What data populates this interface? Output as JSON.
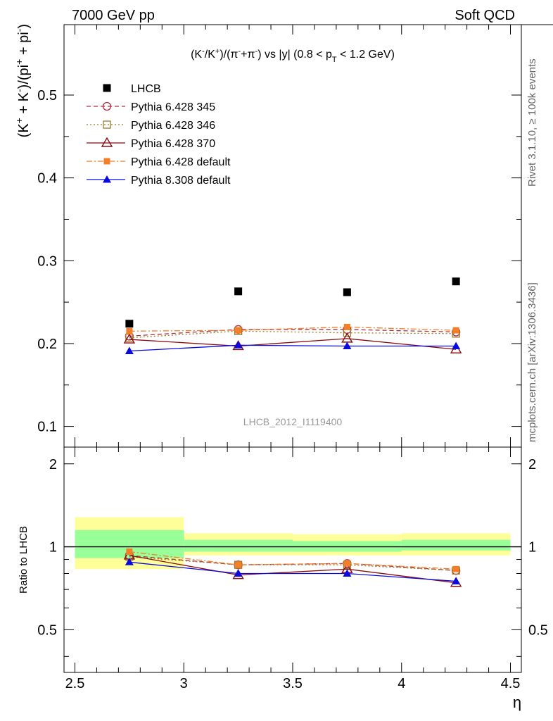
{
  "header": {
    "left": "7000 GeV pp",
    "right": "Soft QCD"
  },
  "side_labels": {
    "rivet": "Rivet 3.1.10, ≥ 100k events",
    "mcplots": "mcplots.cern.ch [arXiv:1306.3436]"
  },
  "watermark": "LHCB_2012_I1119400",
  "chart_data": [
    {
      "type": "scatter",
      "title": {
        "a": "(K",
        "sup1": "-",
        "b": "/K",
        "sup2": "+",
        "c": ")/(π",
        "sup3": "-",
        "d": "+π",
        "sup4": "-",
        "e": ") vs |y| (0.8 < p",
        "sub": "T",
        "f": " < 1.2 GeV)"
      },
      "ylabel": {
        "a": "(K",
        "sup1": "+",
        "b": " + K",
        "sup2": "-",
        "c": ")/(pi",
        "sup3": "+",
        "d": " + pi",
        "sup4": "-",
        "e": ")"
      },
      "ylim": [
        0.075,
        0.585
      ],
      "xlim": [
        2.45,
        4.55
      ],
      "yticks": [
        {
          "v": 0.1,
          "label": "0.1"
        },
        {
          "v": 0.2,
          "label": "0.2"
        },
        {
          "v": 0.3,
          "label": "0.3"
        },
        {
          "v": 0.4,
          "label": "0.4"
        },
        {
          "v": 0.5,
          "label": "0.5"
        }
      ],
      "legend": "top-left",
      "series": [
        {
          "name": "LHCB",
          "color": "#000000",
          "marker": "square-filled",
          "line": "none",
          "points": [
            {
              "x": 2.75,
              "y": 0.224
            },
            {
              "x": 3.25,
              "y": 0.263
            },
            {
              "x": 3.75,
              "y": 0.262
            },
            {
              "x": 4.25,
              "y": 0.275
            }
          ]
        },
        {
          "name": "Pythia 6.428 345",
          "color": "#b03040",
          "marker": "circle-open",
          "line": "dashed",
          "points": [
            {
              "x": 2.75,
              "y": 0.209
            },
            {
              "x": 3.25,
              "y": 0.217
            },
            {
              "x": 3.75,
              "y": 0.217
            },
            {
              "x": 4.25,
              "y": 0.214
            }
          ]
        },
        {
          "name": "Pythia 6.428 346",
          "color": "#9a7a30",
          "marker": "square-open",
          "line": "dotted",
          "points": [
            {
              "x": 2.75,
              "y": 0.207
            },
            {
              "x": 3.25,
              "y": 0.215
            },
            {
              "x": 3.75,
              "y": 0.213
            },
            {
              "x": 4.25,
              "y": 0.212
            }
          ]
        },
        {
          "name": "Pythia 6.428 370",
          "color": "#8b0a10",
          "marker": "triangle-open",
          "line": "solid",
          "points": [
            {
              "x": 2.75,
              "y": 0.205
            },
            {
              "x": 3.25,
              "y": 0.197
            },
            {
              "x": 3.75,
              "y": 0.206
            },
            {
              "x": 4.25,
              "y": 0.193
            }
          ]
        },
        {
          "name": "Pythia 6.428 default",
          "color": "#f57f28",
          "marker": "square-filled-small",
          "line": "dashdot",
          "points": [
            {
              "x": 2.75,
              "y": 0.215
            },
            {
              "x": 3.25,
              "y": 0.216
            },
            {
              "x": 3.75,
              "y": 0.22
            },
            {
              "x": 4.25,
              "y": 0.216
            }
          ]
        },
        {
          "name": "Pythia 8.308 default",
          "color": "#0a0ae0",
          "marker": "triangle-filled",
          "line": "solid",
          "points": [
            {
              "x": 2.75,
              "y": 0.191
            },
            {
              "x": 3.25,
              "y": 0.198
            },
            {
              "x": 3.75,
              "y": 0.197
            },
            {
              "x": 4.25,
              "y": 0.197
            }
          ]
        }
      ]
    },
    {
      "type": "scatter",
      "ylabel": "Ratio to LHCB",
      "xlabel": "η",
      "ylim": [
        0.35,
        2.3
      ],
      "xlim": [
        2.45,
        4.55
      ],
      "yticks": [
        {
          "v": 0.5,
          "label": "0.5"
        },
        {
          "v": 1,
          "label": "1"
        },
        {
          "v": 2,
          "label": "2"
        }
      ],
      "xticks": [
        {
          "v": 2.5,
          "label": "2.5"
        },
        {
          "v": 3,
          "label": "3"
        },
        {
          "v": 3.5,
          "label": "3.5"
        },
        {
          "v": 4,
          "label": "4"
        },
        {
          "v": 4.5,
          "label": "4.5"
        }
      ],
      "bands": [
        {
          "x0": 2.5,
          "x1": 3.0,
          "yellow": [
            0.83,
            1.28
          ],
          "green": [
            0.91,
            1.15
          ]
        },
        {
          "x0": 3.0,
          "x1": 3.5,
          "yellow": [
            0.93,
            1.12
          ],
          "green": [
            0.96,
            1.06
          ]
        },
        {
          "x0": 3.5,
          "x1": 4.0,
          "yellow": [
            0.93,
            1.11
          ],
          "green": [
            0.96,
            1.05
          ]
        },
        {
          "x0": 4.0,
          "x1": 4.5,
          "yellow": [
            0.93,
            1.12
          ],
          "green": [
            0.97,
            1.06
          ]
        }
      ],
      "series": [
        {
          "name": "Pythia 6.428 345",
          "color": "#b03040",
          "marker": "circle-open",
          "line": "dashed",
          "points": [
            {
              "x": 2.75,
              "y": 0.93
            },
            {
              "x": 3.25,
              "y": 0.86
            },
            {
              "x": 3.75,
              "y": 0.87
            },
            {
              "x": 4.25,
              "y": 0.82
            }
          ]
        },
        {
          "name": "Pythia 6.428 346",
          "color": "#9a7a30",
          "marker": "square-open",
          "line": "dotted",
          "points": [
            {
              "x": 2.75,
              "y": 0.92
            },
            {
              "x": 3.25,
              "y": 0.86
            },
            {
              "x": 3.75,
              "y": 0.86
            },
            {
              "x": 4.25,
              "y": 0.82
            }
          ]
        },
        {
          "name": "Pythia 6.428 370",
          "color": "#8b0a10",
          "marker": "triangle-open",
          "line": "solid",
          "points": [
            {
              "x": 2.75,
              "y": 0.93
            },
            {
              "x": 3.25,
              "y": 0.79
            },
            {
              "x": 3.75,
              "y": 0.83
            },
            {
              "x": 4.25,
              "y": 0.74
            }
          ]
        },
        {
          "name": "Pythia 6.428 default",
          "color": "#f57f28",
          "marker": "square-filled-small",
          "line": "dashdot",
          "points": [
            {
              "x": 2.75,
              "y": 0.96
            },
            {
              "x": 3.25,
              "y": 0.86
            },
            {
              "x": 3.75,
              "y": 0.87
            },
            {
              "x": 4.25,
              "y": 0.83
            }
          ]
        },
        {
          "name": "Pythia 8.308 default",
          "color": "#0a0ae0",
          "marker": "triangle-filled",
          "line": "solid",
          "points": [
            {
              "x": 2.75,
              "y": 0.88
            },
            {
              "x": 3.25,
              "y": 0.8
            },
            {
              "x": 3.75,
              "y": 0.8
            },
            {
              "x": 4.25,
              "y": 0.75
            }
          ]
        }
      ]
    }
  ]
}
